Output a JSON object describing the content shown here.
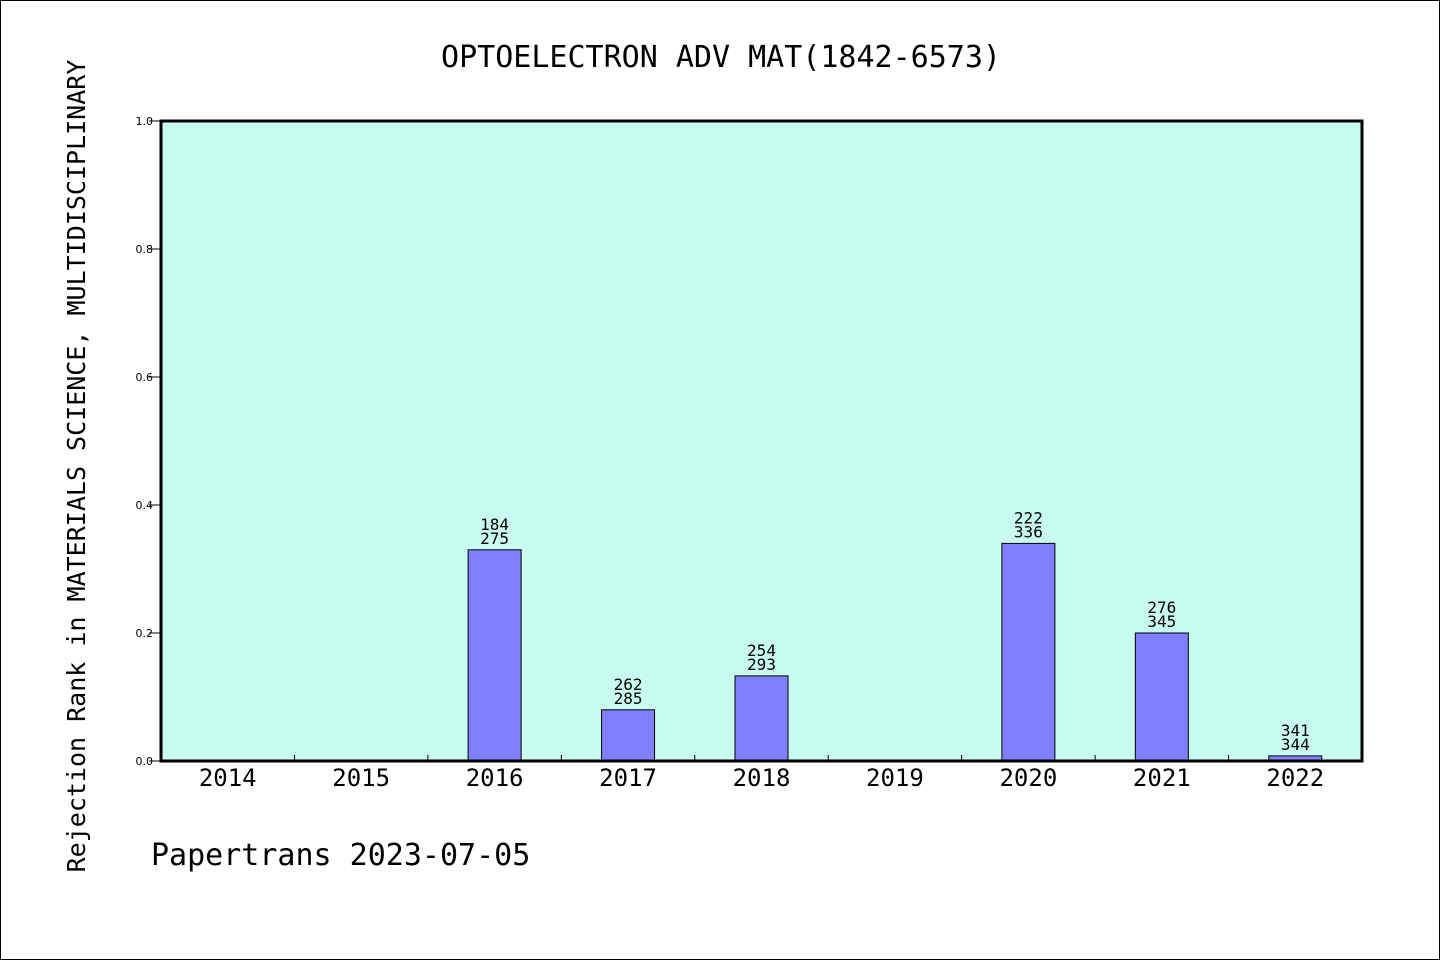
{
  "chart_data": {
    "type": "bar",
    "title": "OPTOELECTRON ADV MAT(1842-6573)",
    "ylabel": "Rejection Rank in MATERIALS SCIENCE, MULTIDISCIPLINARY",
    "xlabel": "",
    "footer": "Papertrans 2023-07-05",
    "ylim": [
      0.0,
      1.0
    ],
    "yticks": [
      "0.0",
      "0.2",
      "0.4",
      "0.6",
      "0.8",
      "1.0"
    ],
    "categories": [
      "2014",
      "2015",
      "2016",
      "2017",
      "2018",
      "2019",
      "2020",
      "2021",
      "2022"
    ],
    "values": [
      0,
      0,
      0.33,
      0.08,
      0.133,
      0,
      0.34,
      0.2,
      0.008
    ],
    "labels_top": [
      "",
      "",
      "184",
      "262",
      "254",
      "",
      "222",
      "276",
      "341"
    ],
    "labels_bottom": [
      "",
      "",
      "275",
      "285",
      "293",
      "",
      "336",
      "345",
      "344"
    ],
    "colors": {
      "plot_bg": "#c8fcee",
      "bar": "#8080ff",
      "axis": "#000000"
    },
    "grid": false,
    "legend": "none"
  }
}
